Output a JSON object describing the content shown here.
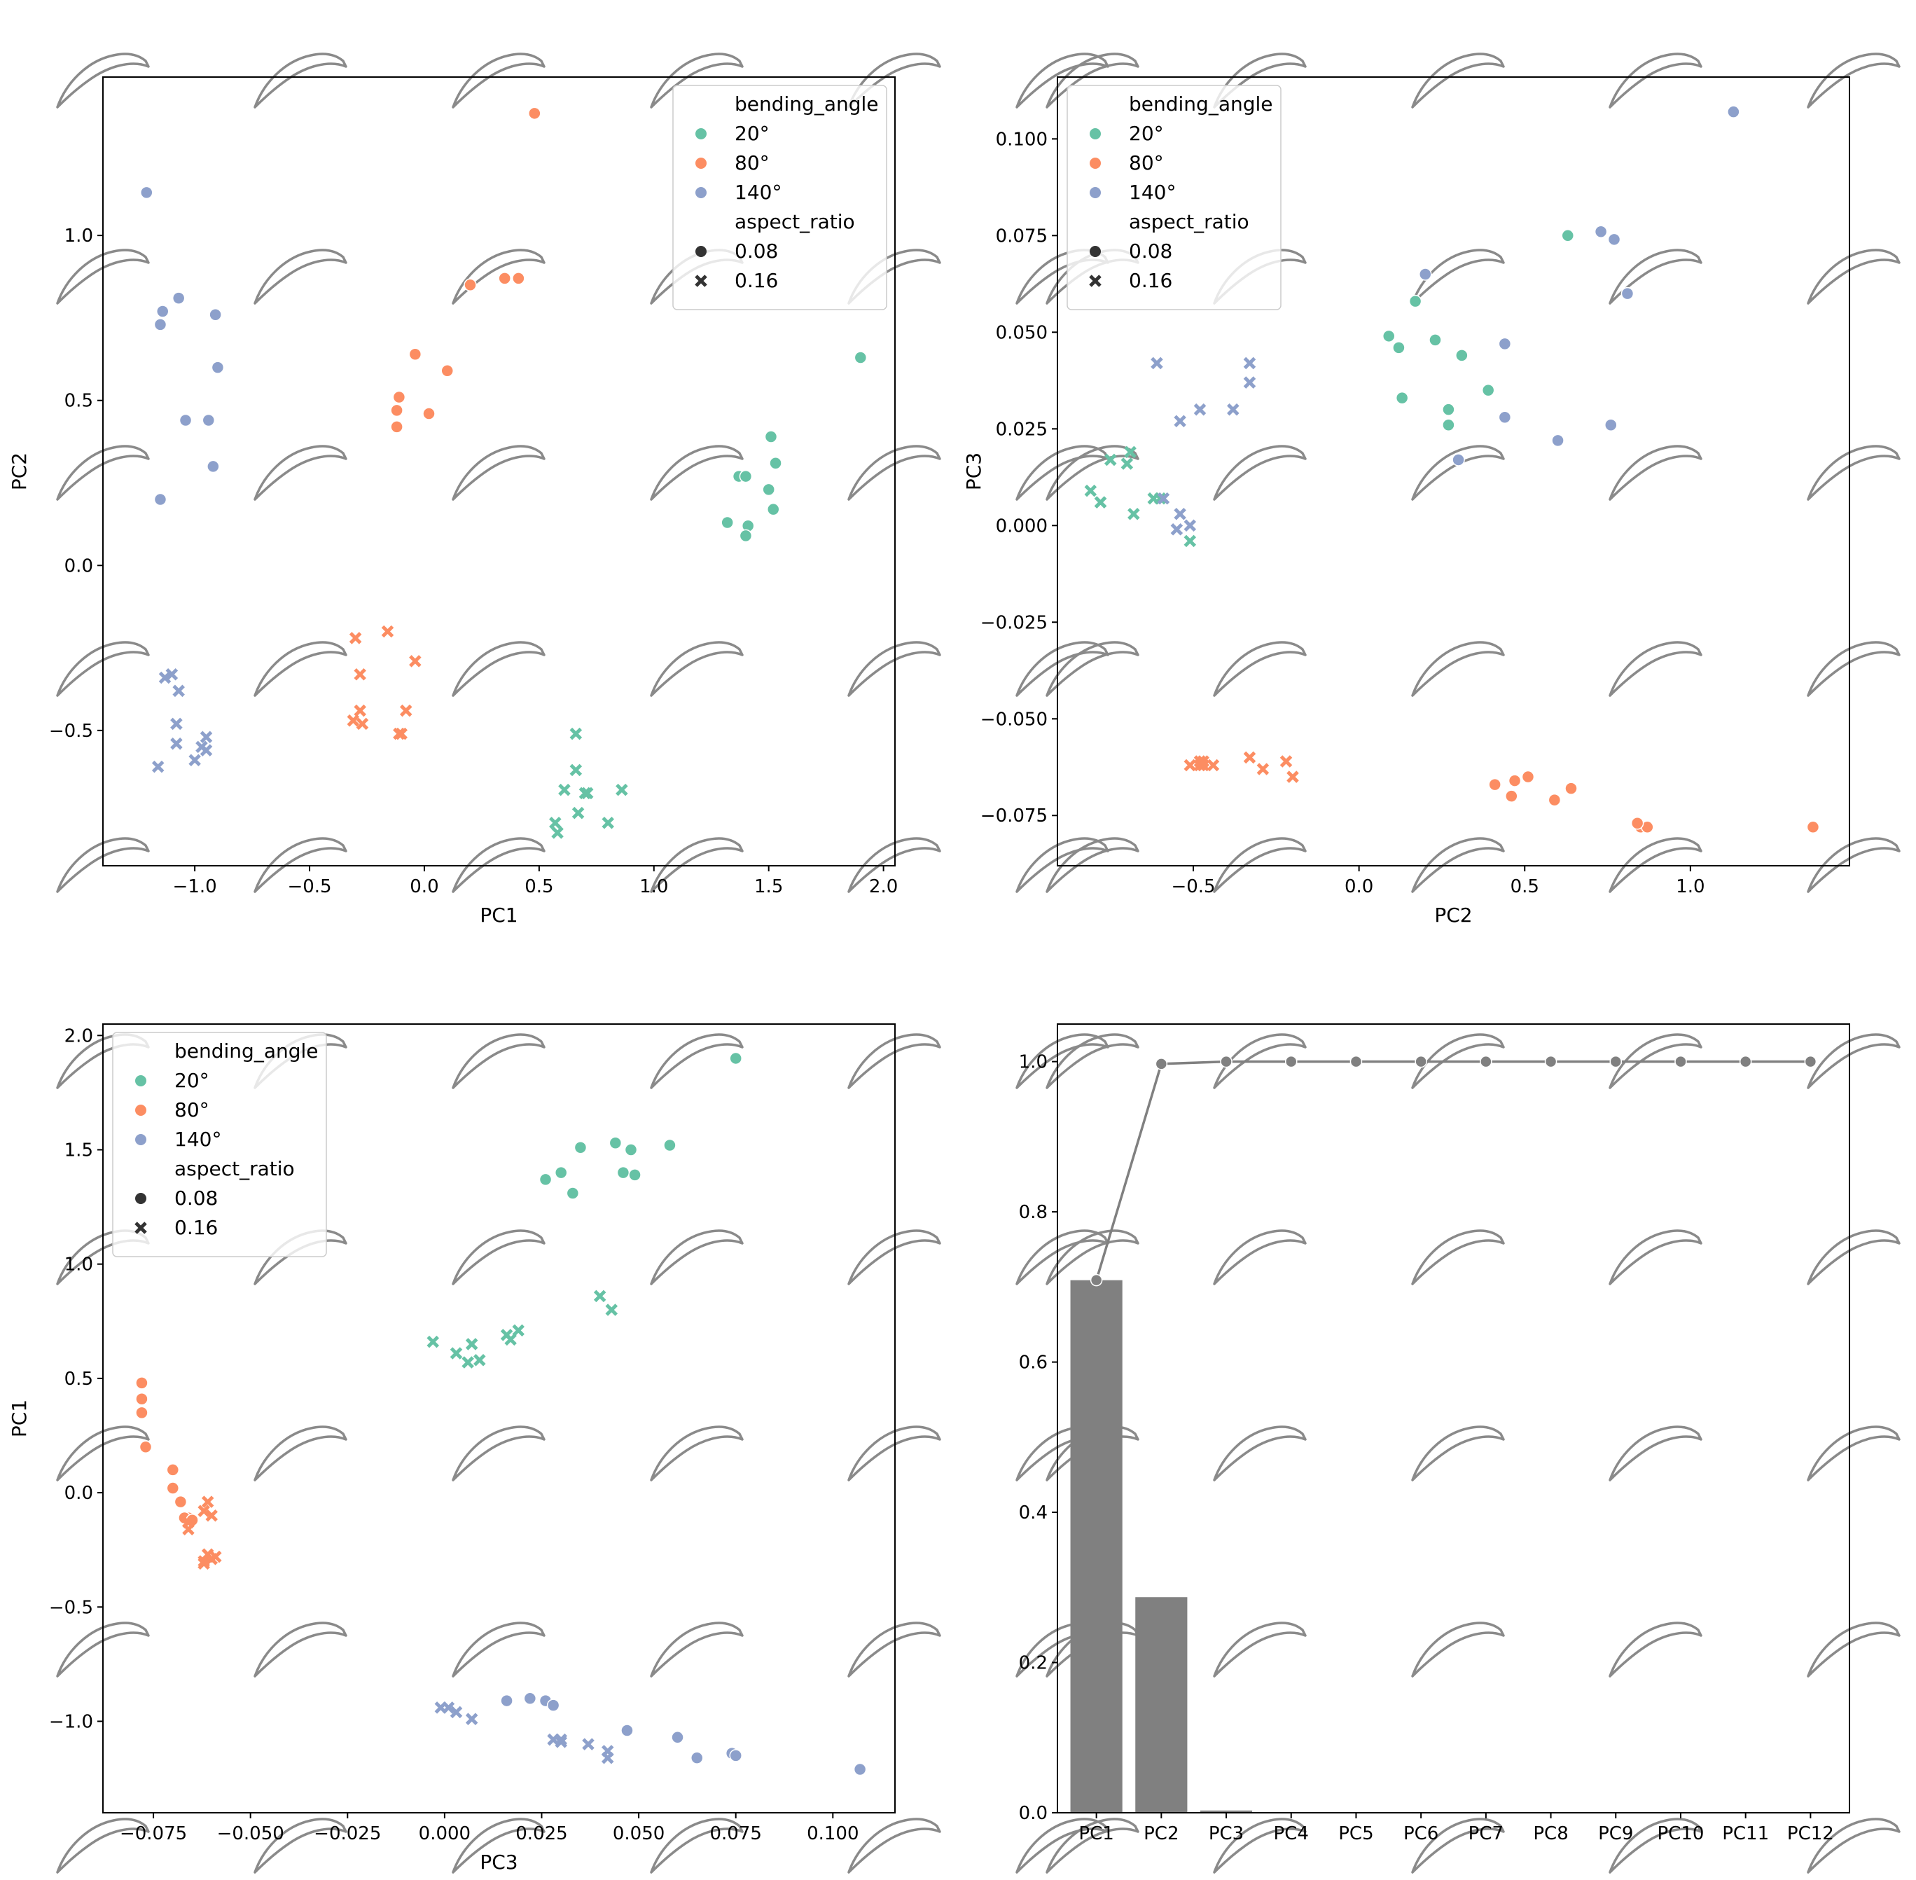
{
  "colors": {
    "20°": "#66c2a5",
    "80°": "#fc8d62",
    "140°": "#8da0cb",
    "bar": "#808080",
    "line": "#808080"
  },
  "legend": {
    "hue_title": "bending_angle",
    "hue_entries": [
      "20°",
      "80°",
      "140°"
    ],
    "style_title": "aspect_ratio",
    "style_entries": [
      "0.08",
      "0.16"
    ]
  },
  "chart_data": [
    {
      "type": "scatter",
      "id": "pc1-pc2",
      "xlabel": "PC1",
      "ylabel": "PC2",
      "xlim": [
        -1.4,
        2.05
      ],
      "ylim": [
        -0.91,
        1.48
      ],
      "xticks": [
        -1.0,
        -0.5,
        0.0,
        0.5,
        1.0,
        1.5,
        2.0
      ],
      "yticks": [
        -0.5,
        0.0,
        0.5,
        1.0
      ],
      "legend_position": "top-right",
      "series": [
        {
          "hue": "20°",
          "style": "0.08",
          "points": [
            [
              1.9,
              0.63
            ],
            [
              1.51,
              0.39
            ],
            [
              1.53,
              0.31
            ],
            [
              1.37,
              0.27
            ],
            [
              1.4,
              0.27
            ],
            [
              1.5,
              0.23
            ],
            [
              1.52,
              0.17
            ],
            [
              1.32,
              0.13
            ],
            [
              1.41,
              0.12
            ],
            [
              1.4,
              0.09
            ]
          ]
        },
        {
          "hue": "20°",
          "style": "0.16",
          "points": [
            [
              0.66,
              -0.51
            ],
            [
              0.66,
              -0.62
            ],
            [
              0.61,
              -0.68
            ],
            [
              0.7,
              -0.69
            ],
            [
              0.71,
              -0.69
            ],
            [
              0.86,
              -0.68
            ],
            [
              0.67,
              -0.75
            ],
            [
              0.57,
              -0.78
            ],
            [
              0.8,
              -0.78
            ],
            [
              0.58,
              -0.81
            ]
          ]
        },
        {
          "hue": "80°",
          "style": "0.08",
          "points": [
            [
              0.48,
              1.37
            ],
            [
              0.41,
              0.87
            ],
            [
              0.35,
              0.87
            ],
            [
              0.2,
              0.85
            ],
            [
              -0.04,
              0.64
            ],
            [
              0.1,
              0.59
            ],
            [
              -0.11,
              0.51
            ],
            [
              -0.12,
              0.47
            ],
            [
              0.02,
              0.46
            ],
            [
              -0.12,
              0.42
            ]
          ]
        },
        {
          "hue": "80°",
          "style": "0.16",
          "points": [
            [
              -0.16,
              -0.2
            ],
            [
              -0.3,
              -0.22
            ],
            [
              -0.04,
              -0.29
            ],
            [
              -0.28,
              -0.33
            ],
            [
              -0.28,
              -0.44
            ],
            [
              -0.08,
              -0.44
            ],
            [
              -0.31,
              -0.47
            ],
            [
              -0.27,
              -0.48
            ],
            [
              -0.11,
              -0.51
            ],
            [
              -0.1,
              -0.51
            ]
          ]
        },
        {
          "hue": "140°",
          "style": "0.08",
          "points": [
            [
              -1.21,
              1.13
            ],
            [
              -1.07,
              0.81
            ],
            [
              -1.14,
              0.77
            ],
            [
              -0.91,
              0.76
            ],
            [
              -1.15,
              0.73
            ],
            [
              -0.9,
              0.6
            ],
            [
              -1.04,
              0.44
            ],
            [
              -0.94,
              0.44
            ],
            [
              -0.92,
              0.3
            ],
            [
              -1.15,
              0.2
            ]
          ]
        },
        {
          "hue": "140°",
          "style": "0.16",
          "points": [
            [
              -1.1,
              -0.33
            ],
            [
              -1.13,
              -0.34
            ],
            [
              -1.07,
              -0.38
            ],
            [
              -1.08,
              -0.48
            ],
            [
              -0.95,
              -0.52
            ],
            [
              -1.08,
              -0.54
            ],
            [
              -0.97,
              -0.55
            ],
            [
              -0.95,
              -0.56
            ],
            [
              -1.0,
              -0.59
            ],
            [
              -1.16,
              -0.61
            ]
          ]
        }
      ]
    },
    {
      "type": "scatter",
      "id": "pc2-pc3",
      "xlabel": "PC2",
      "ylabel": "PC3",
      "xlim": [
        -0.91,
        1.48
      ],
      "ylim": [
        -0.088,
        0.116
      ],
      "xticks": [
        -0.5,
        0.0,
        0.5,
        1.0
      ],
      "yticks": [
        -0.075,
        -0.05,
        -0.025,
        0.0,
        0.025,
        0.05,
        0.075,
        0.1
      ],
      "legend_position": "top-left",
      "series": [
        {
          "hue": "20°",
          "style": "0.08",
          "points": [
            [
              0.63,
              0.075
            ],
            [
              0.17,
              0.058
            ],
            [
              0.09,
              0.049
            ],
            [
              0.23,
              0.048
            ],
            [
              0.12,
              0.046
            ],
            [
              0.31,
              0.044
            ],
            [
              0.39,
              0.035
            ],
            [
              0.13,
              0.033
            ],
            [
              0.27,
              0.03
            ],
            [
              0.27,
              0.026
            ]
          ]
        },
        {
          "hue": "20°",
          "style": "0.16",
          "points": [
            [
              -0.81,
              0.009
            ],
            [
              -0.78,
              0.006
            ],
            [
              -0.75,
              0.017
            ],
            [
              -0.69,
              0.019
            ],
            [
              -0.7,
              0.016
            ],
            [
              -0.62,
              0.007
            ],
            [
              -0.68,
              0.003
            ],
            [
              -0.51,
              -0.004
            ],
            [
              -0.6,
              0.007
            ],
            [
              -0.78,
              0.006
            ]
          ]
        },
        {
          "hue": "80°",
          "style": "0.08",
          "points": [
            [
              1.37,
              -0.078
            ],
            [
              0.85,
              -0.078
            ],
            [
              0.87,
              -0.078
            ],
            [
              0.84,
              -0.077
            ],
            [
              0.64,
              -0.068
            ],
            [
              0.59,
              -0.071
            ],
            [
              0.46,
              -0.07
            ],
            [
              0.51,
              -0.065
            ],
            [
              0.47,
              -0.066
            ],
            [
              0.41,
              -0.067
            ]
          ]
        },
        {
          "hue": "80°",
          "style": "0.16",
          "points": [
            [
              -0.2,
              -0.065
            ],
            [
              -0.22,
              -0.061
            ],
            [
              -0.29,
              -0.063
            ],
            [
              -0.33,
              -0.06
            ],
            [
              -0.44,
              -0.062
            ],
            [
              -0.47,
              -0.062
            ],
            [
              -0.48,
              -0.061
            ],
            [
              -0.47,
              -0.061
            ],
            [
              -0.51,
              -0.062
            ],
            [
              -0.48,
              -0.062
            ]
          ]
        },
        {
          "hue": "140°",
          "style": "0.08",
          "points": [
            [
              1.13,
              0.107
            ],
            [
              0.73,
              0.076
            ],
            [
              0.77,
              0.074
            ],
            [
              0.81,
              0.06
            ],
            [
              0.44,
              0.047
            ],
            [
              0.6,
              0.022
            ],
            [
              0.44,
              0.028
            ],
            [
              0.3,
              0.017
            ],
            [
              0.2,
              0.065
            ],
            [
              0.76,
              0.026
            ]
          ]
        },
        {
          "hue": "140°",
          "style": "0.16",
          "points": [
            [
              -0.61,
              0.042
            ],
            [
              -0.33,
              0.042
            ],
            [
              -0.33,
              0.037
            ],
            [
              -0.48,
              0.03
            ],
            [
              -0.38,
              0.03
            ],
            [
              -0.54,
              0.027
            ],
            [
              -0.59,
              0.007
            ],
            [
              -0.54,
              0.003
            ],
            [
              -0.51,
              0.0
            ],
            [
              -0.55,
              -0.001
            ]
          ]
        }
      ]
    },
    {
      "type": "scatter",
      "id": "pc3-pc1",
      "xlabel": "PC3",
      "ylabel": "PC1",
      "xlim": [
        -0.088,
        0.116
      ],
      "ylim": [
        -1.4,
        2.05
      ],
      "xticks": [
        -0.075,
        -0.05,
        -0.025,
        0.0,
        0.025,
        0.05,
        0.075,
        0.1
      ],
      "yticks": [
        -1.0,
        -0.5,
        0.0,
        0.5,
        1.0,
        1.5,
        2.0
      ],
      "legend_position": "top-left",
      "series": [
        {
          "hue": "20°",
          "style": "0.08",
          "points": [
            [
              0.075,
              1.9
            ],
            [
              0.044,
              1.53
            ],
            [
              0.058,
              1.52
            ],
            [
              0.048,
              1.5
            ],
            [
              0.035,
              1.51
            ],
            [
              0.03,
              1.4
            ],
            [
              0.046,
              1.4
            ],
            [
              0.049,
              1.39
            ],
            [
              0.026,
              1.37
            ],
            [
              0.033,
              1.31
            ]
          ]
        },
        {
          "hue": "20°",
          "style": "0.16",
          "points": [
            [
              0.04,
              0.86
            ],
            [
              0.043,
              0.8
            ],
            [
              0.019,
              0.71
            ],
            [
              0.016,
              0.69
            ],
            [
              0.017,
              0.67
            ],
            [
              -0.003,
              0.66
            ],
            [
              0.007,
              0.65
            ],
            [
              0.003,
              0.61
            ],
            [
              0.006,
              0.57
            ],
            [
              0.009,
              0.58
            ]
          ]
        },
        {
          "hue": "80°",
          "style": "0.08",
          "points": [
            [
              -0.078,
              0.48
            ],
            [
              -0.078,
              0.41
            ],
            [
              -0.078,
              0.35
            ],
            [
              -0.077,
              0.2
            ],
            [
              -0.07,
              0.1
            ],
            [
              -0.07,
              0.02
            ],
            [
              -0.068,
              -0.04
            ],
            [
              -0.066,
              -0.11
            ],
            [
              -0.067,
              -0.11
            ],
            [
              -0.065,
              -0.12
            ]
          ]
        },
        {
          "hue": "80°",
          "style": "0.16",
          "points": [
            [
              -0.061,
              -0.04
            ],
            [
              -0.062,
              -0.08
            ],
            [
              -0.06,
              -0.1
            ],
            [
              -0.066,
              -0.13
            ],
            [
              -0.066,
              -0.16
            ],
            [
              -0.061,
              -0.27
            ],
            [
              -0.06,
              -0.29
            ],
            [
              -0.062,
              -0.3
            ],
            [
              -0.062,
              -0.31
            ],
            [
              -0.059,
              -0.28
            ]
          ]
        },
        {
          "hue": "140°",
          "style": "0.08",
          "points": [
            [
              0.016,
              -0.91
            ],
            [
              0.022,
              -0.9
            ],
            [
              0.026,
              -0.91
            ],
            [
              0.028,
              -0.93
            ],
            [
              0.047,
              -1.04
            ],
            [
              0.06,
              -1.07
            ],
            [
              0.074,
              -1.14
            ],
            [
              0.075,
              -1.15
            ],
            [
              0.065,
              -1.16
            ],
            [
              0.107,
              -1.21
            ]
          ]
        },
        {
          "hue": "140°",
          "style": "0.16",
          "points": [
            [
              -0.001,
              -0.94
            ],
            [
              0.001,
              -0.94
            ],
            [
              0.003,
              -0.96
            ],
            [
              0.007,
              -0.99
            ],
            [
              0.028,
              -1.08
            ],
            [
              0.03,
              -1.08
            ],
            [
              0.037,
              -1.1
            ],
            [
              0.042,
              -1.13
            ],
            [
              0.042,
              -1.16
            ],
            [
              0.03,
              -1.09
            ]
          ]
        }
      ]
    },
    {
      "type": "bar",
      "id": "explained-variance",
      "xlabel": "",
      "ylabel": "",
      "categories": [
        "PC1",
        "PC2",
        "PC3",
        "PC4",
        "PC5",
        "PC6",
        "PC7",
        "PC8",
        "PC9",
        "PC10",
        "PC11",
        "PC12"
      ],
      "values": [
        0.709,
        0.287,
        0.003,
        0.0003,
        0.0001,
        0,
        0,
        0,
        0,
        0,
        0,
        0
      ],
      "cumulative": [
        0.709,
        0.997,
        1.0,
        1.0,
        1.0,
        1.0,
        1.0,
        1.0,
        1.0,
        1.0,
        1.0,
        1.0
      ],
      "ylim": [
        0,
        1.05
      ],
      "yticks": [
        0.0,
        0.2,
        0.4,
        0.6,
        0.8,
        1.0
      ]
    }
  ]
}
